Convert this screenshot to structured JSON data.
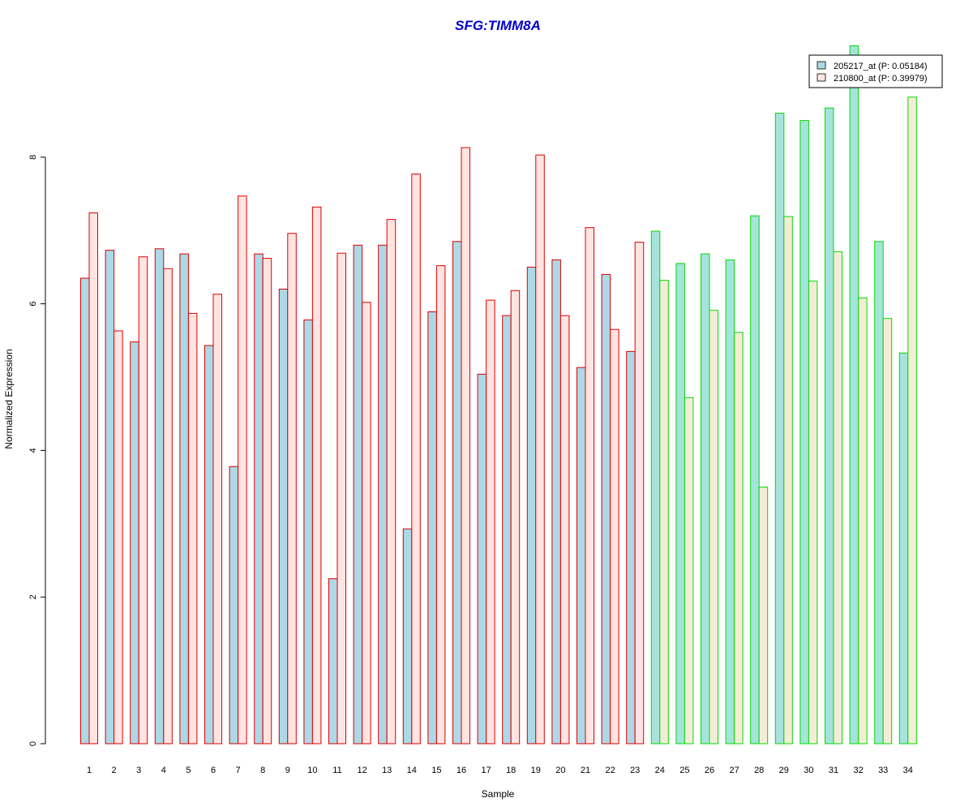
{
  "chart_data": {
    "type": "bar",
    "title": "SFG:TIMM8A",
    "xlabel": "Sample",
    "ylabel": "Normalized Expression",
    "ylim": [
      0,
      9.5
    ],
    "yticks": [
      0,
      2,
      4,
      6,
      8
    ],
    "legend_position": "top-right",
    "categories": [
      "1",
      "2",
      "3",
      "4",
      "5",
      "6",
      "7",
      "8",
      "9",
      "10",
      "11",
      "12",
      "13",
      "14",
      "15",
      "16",
      "17",
      "18",
      "19",
      "20",
      "21",
      "22",
      "23",
      "24",
      "25",
      "26",
      "27",
      "28",
      "29",
      "30",
      "31",
      "32",
      "33",
      "34"
    ],
    "groups": [
      {
        "samples": [
          1,
          23
        ],
        "border_color": "#dd0000",
        "fill_colors": [
          "#add8e6",
          "#ffe4e1"
        ]
      },
      {
        "samples": [
          24,
          34
        ],
        "border_color": "#00dd00",
        "fill_colors": [
          "#a6e3dc",
          "#f5ecd7"
        ]
      }
    ],
    "series": [
      {
        "name": "205217_at (P: 0.05184)",
        "legend_color": "#add8e6",
        "values": [
          6.35,
          6.73,
          5.48,
          6.75,
          6.68,
          5.43,
          3.78,
          6.68,
          6.2,
          5.78,
          2.25,
          6.8,
          6.8,
          2.93,
          5.89,
          6.85,
          5.04,
          5.84,
          6.5,
          6.6,
          5.13,
          6.4,
          5.35,
          6.99,
          6.55,
          6.68,
          6.6,
          7.2,
          8.6,
          8.5,
          8.67,
          9.52,
          6.85,
          5.33
        ]
      },
      {
        "name": "210800_at (P: 0.39979)",
        "legend_color": "#ffe4e1",
        "values": [
          7.24,
          5.63,
          6.64,
          6.48,
          5.87,
          6.13,
          7.47,
          6.62,
          6.96,
          7.32,
          6.69,
          6.02,
          7.15,
          7.77,
          6.52,
          8.13,
          6.05,
          6.18,
          8.03,
          5.84,
          7.04,
          5.65,
          6.84,
          6.32,
          4.72,
          5.91,
          5.61,
          3.5,
          7.19,
          6.31,
          6.71,
          6.08,
          5.8,
          8.82
        ]
      }
    ]
  }
}
